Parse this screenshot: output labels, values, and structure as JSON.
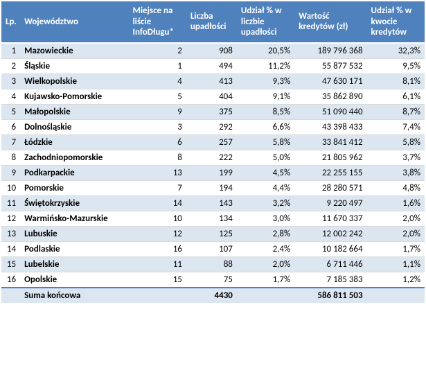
{
  "headers": {
    "lp": "Lp.",
    "woj": "Województwo",
    "miejsce": "Miejsce na liście InfoDługu*",
    "liczba": "Liczba upadłości",
    "udzial_l": "Udział % w liczbie upadłości",
    "wartosc": "Wartość kredytów (zł)",
    "udzial_k": "Udział % w kwocie kredytów"
  },
  "rows": [
    {
      "lp": "1",
      "woj": "Mazowieckie",
      "miejsce": "2",
      "liczba": "908",
      "udzial_l": "20,5%",
      "wartosc": "189 796 368",
      "udzial_k": "32,3%"
    },
    {
      "lp": "2",
      "woj": "Śląskie",
      "miejsce": "1",
      "liczba": "494",
      "udzial_l": "11,2%",
      "wartosc": "55 877 532",
      "udzial_k": "9,5%"
    },
    {
      "lp": "3",
      "woj": "Wielkopolskie",
      "miejsce": "4",
      "liczba": "413",
      "udzial_l": "9,3%",
      "wartosc": "47 630 171",
      "udzial_k": "8,1%"
    },
    {
      "lp": "4",
      "woj": "Kujawsko-Pomorskie",
      "miejsce": "5",
      "liczba": "404",
      "udzial_l": "9,1%",
      "wartosc": "35 862 890",
      "udzial_k": "6,1%"
    },
    {
      "lp": "5",
      "woj": "Małopolskie",
      "miejsce": "9",
      "liczba": "375",
      "udzial_l": "8,5%",
      "wartosc": "51 090 440",
      "udzial_k": "8,7%"
    },
    {
      "lp": "6",
      "woj": "Dolnośląskie",
      "miejsce": "3",
      "liczba": "292",
      "udzial_l": "6,6%",
      "wartosc": "43 398 433",
      "udzial_k": "7,4%"
    },
    {
      "lp": "7",
      "woj": "Łódzkie",
      "miejsce": "6",
      "liczba": "257",
      "udzial_l": "5,8%",
      "wartosc": "33 841 412",
      "udzial_k": "5,8%"
    },
    {
      "lp": "8",
      "woj": "Zachodniopomorskie",
      "miejsce": "8",
      "liczba": "222",
      "udzial_l": "5,0%",
      "wartosc": "21 805 962",
      "udzial_k": "3,7%"
    },
    {
      "lp": "9",
      "woj": "Podkarpackie",
      "miejsce": "13",
      "liczba": "199",
      "udzial_l": "4,5%",
      "wartosc": "22 255 155",
      "udzial_k": "3,8%"
    },
    {
      "lp": "10",
      "woj": "Pomorskie",
      "miejsce": "7",
      "liczba": "194",
      "udzial_l": "4,4%",
      "wartosc": "28 280 571",
      "udzial_k": "4,8%"
    },
    {
      "lp": "11",
      "woj": "Świętokrzyskie",
      "miejsce": "14",
      "liczba": "143",
      "udzial_l": "3,2%",
      "wartosc": "9 220 497",
      "udzial_k": "1,6%"
    },
    {
      "lp": "12",
      "woj": "Warmińsko-Mazurskie",
      "miejsce": "10",
      "liczba": "134",
      "udzial_l": "3,0%",
      "wartosc": "11 670 337",
      "udzial_k": "2,0%"
    },
    {
      "lp": "13",
      "woj": "Lubuskie",
      "miejsce": "12",
      "liczba": "125",
      "udzial_l": "2,8%",
      "wartosc": "12 002 242",
      "udzial_k": "2,0%"
    },
    {
      "lp": "14",
      "woj": "Podlaskie",
      "miejsce": "16",
      "liczba": "107",
      "udzial_l": "2,4%",
      "wartosc": "10 182 664",
      "udzial_k": "1,7%"
    },
    {
      "lp": "15",
      "woj": "Lubelskie",
      "miejsce": "11",
      "liczba": "88",
      "udzial_l": "2,0%",
      "wartosc": "6 711 446",
      "udzial_k": "1,1%"
    },
    {
      "lp": "16",
      "woj": "Opolskie",
      "miejsce": "15",
      "liczba": "75",
      "udzial_l": "1,7%",
      "wartosc": "7 185 383",
      "udzial_k": "1,2%"
    }
  ],
  "total": {
    "label": "Suma końcowa",
    "liczba": "4430",
    "wartosc": "586 811 503"
  }
}
